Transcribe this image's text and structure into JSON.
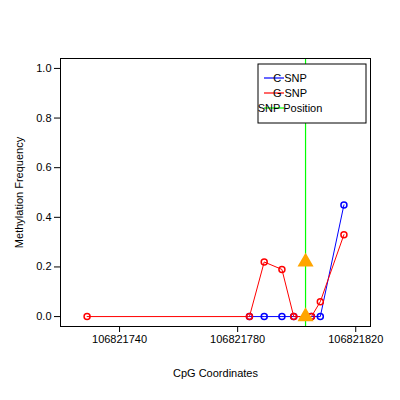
{
  "chart_data": {
    "type": "line",
    "x_label": "CpG Coordinates",
    "y_label": "Methylation Frequency",
    "xlim": [
      106821720,
      106821825
    ],
    "xticks": [
      106821740,
      106821780,
      106821820
    ],
    "ylim": [
      -0.04,
      1.04
    ],
    "yticks": [
      {
        "value": 0,
        "label": "0.0"
      },
      {
        "value": 0.2,
        "label": "0.2"
      },
      {
        "value": 0.4,
        "label": "0.4"
      },
      {
        "value": 0.6,
        "label": "0.6"
      },
      {
        "value": 0.8,
        "label": "0.8"
      },
      {
        "value": 1,
        "label": "1.0"
      }
    ],
    "grid": false,
    "legend": "right",
    "series": [
      {
        "name": "C SNP",
        "color": "#0000ff",
        "marker": "circle",
        "x": [
          106821784,
          106821789,
          106821795,
          106821799,
          106821803,
          106821805,
          106821808,
          106821816
        ],
        "values": [
          0,
          0,
          0,
          0,
          0,
          0,
          0,
          0.45
        ]
      },
      {
        "name": "G SNP",
        "color": "#ff0000",
        "marker": "circle",
        "x": [
          106821729,
          106821784,
          106821789,
          106821795,
          106821799,
          106821803,
          106821805,
          106821808,
          106821816
        ],
        "values": [
          0,
          0,
          0.22,
          0.19,
          0,
          0,
          0,
          0.06,
          0.33
        ]
      }
    ],
    "snp_line": {
      "name": "SNP Position",
      "x": 106821803,
      "color": "#00ff00"
    },
    "snp_markers": {
      "x": 106821803,
      "values": [
        0.22,
        0
      ],
      "color": "#ffa500",
      "marker": "triangle"
    }
  }
}
